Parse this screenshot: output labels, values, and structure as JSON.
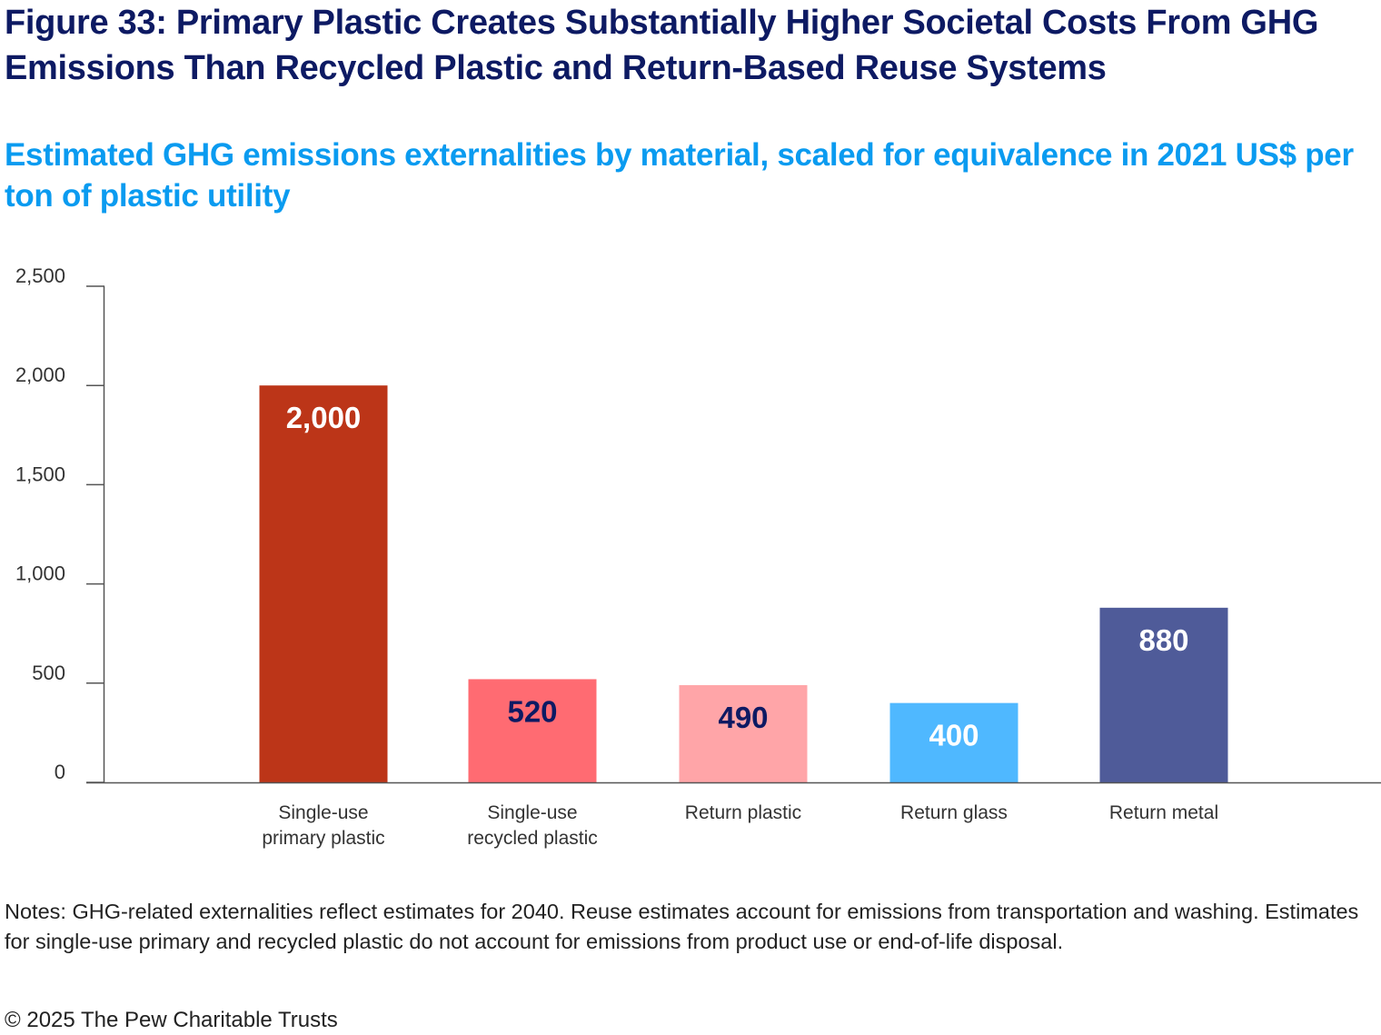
{
  "title": "Figure 33: Primary Plastic Creates Substantially Higher Societal Costs From GHG Emissions Than Recycled Plastic and Return-Based Reuse Systems",
  "subtitle": "Estimated GHG emissions externalities by material, scaled for equivalence in 2021 US$ per ton of plastic utility",
  "notes": "Notes: GHG-related externalities reflect estimates for 2040. Reuse estimates account for emissions from transportation and washing. Estimates for single-use primary and recycled plastic do not account for emissions from product use or end-of-life disposal.",
  "copyright": "© 2025 The Pew Charitable Trusts",
  "chart_data": {
    "type": "bar",
    "categories": [
      [
        "Single-use",
        "primary plastic"
      ],
      [
        "Single-use",
        "recycled plastic"
      ],
      [
        "Return plastic"
      ],
      [
        "Return glass"
      ],
      [
        "Return metal"
      ]
    ],
    "values": [
      2000,
      520,
      490,
      400,
      880
    ],
    "data_labels": [
      "2,000",
      "520",
      "490",
      "400",
      "880"
    ],
    "colors": [
      "#bc3518",
      "#ff6b72",
      "#ffa5a8",
      "#4fb8ff",
      "#4f5b99"
    ],
    "label_colors": [
      "#ffffff",
      "#0d1a63",
      "#0d1a63",
      "#ffffff",
      "#ffffff"
    ],
    "ylim": [
      0,
      2500
    ],
    "yticks": [
      0,
      500,
      1000,
      1500,
      2000,
      2500
    ],
    "ytick_labels": [
      "0",
      "500",
      "1,000",
      "1,500",
      "2,000",
      "2,500"
    ],
    "xlabel": "",
    "ylabel": "",
    "grid": false,
    "legend": "none"
  }
}
